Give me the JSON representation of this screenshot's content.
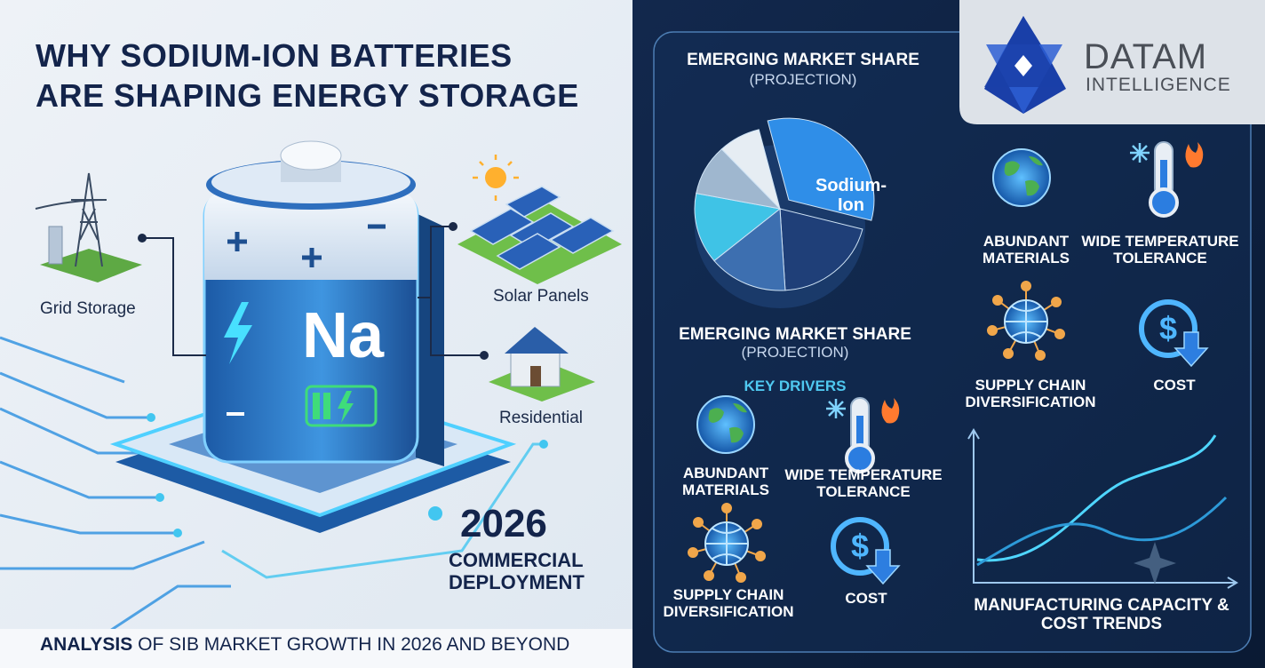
{
  "left": {
    "title": [
      "WHY SODIUM-ION BATTERIES",
      "ARE SHAPING ENERGY STORAGE"
    ],
    "applications": [
      "Grid Storage",
      "Solar Panels",
      "Residential"
    ],
    "battery_symbol": "Na",
    "milestone": {
      "year": "2026",
      "lines": [
        "COMMERCIAL",
        "DEPLOYMENT"
      ]
    },
    "footer": {
      "lead": "ANALYSIS",
      "text": "OF SIB MARKET GROWTH IN 2026 AND BEYOND"
    }
  },
  "logo": {
    "name": "DATAM",
    "tagline": "INTELLIGENCE"
  },
  "market_share": {
    "title": "EMERGING MARKET SHARE",
    "subtitle": "(PROJECTION)",
    "caption_title": "EMERGING MARKET SHARE",
    "caption_subtitle": "(PROJECTION)",
    "pie": {
      "labels": [
        "Sodium-Ion",
        null,
        null,
        null,
        null,
        null
      ],
      "values": [
        33,
        20,
        15,
        14,
        10,
        8
      ],
      "colors": [
        "#2f8ee8",
        "#1f3f78",
        "#3d6fb0",
        "#3fc3e6",
        "#9fb7cf",
        "#e6edf3"
      ]
    }
  },
  "key_drivers": {
    "title": "KEY DRIVERS",
    "items": [
      "ABUNDANT MATERIALS",
      "WIDE TEMPERATURE TOLERANCE",
      "SUPPLY CHAIN DIVERSIFICATION",
      "COST"
    ]
  },
  "drivers_panel": {
    "items": [
      "ABUNDANT MATERIALS",
      "WIDE TEMPERATURE TOLERANCE",
      "SUPPLY CHAIN DIVERSIFICATION",
      "COST"
    ]
  },
  "trend_chart": {
    "title": "MANUFACTURING CAPACITY & COST TRENDS"
  }
}
